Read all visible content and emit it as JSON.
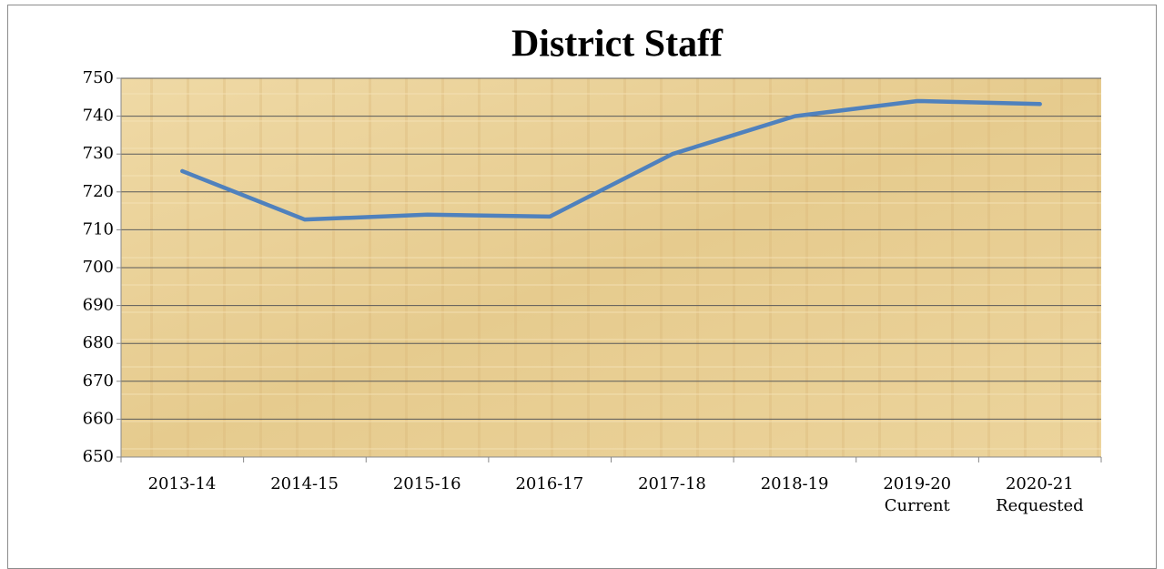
{
  "chart_data": {
    "type": "line",
    "title": "District Staff",
    "categories": [
      "2013-14",
      "2014-15",
      "2015-16",
      "2016-17",
      "2017-18",
      "2018-19",
      "2019-20\nCurrent",
      "2020-21\nRequested"
    ],
    "values": [
      725.5,
      712.7,
      714,
      713.5,
      730,
      740,
      744,
      743.2
    ],
    "color": "#4f81bd",
    "ylim": [
      650,
      750
    ],
    "yticks": [
      650,
      660,
      670,
      680,
      690,
      700,
      710,
      720,
      730,
      740,
      750
    ],
    "grid": true
  }
}
